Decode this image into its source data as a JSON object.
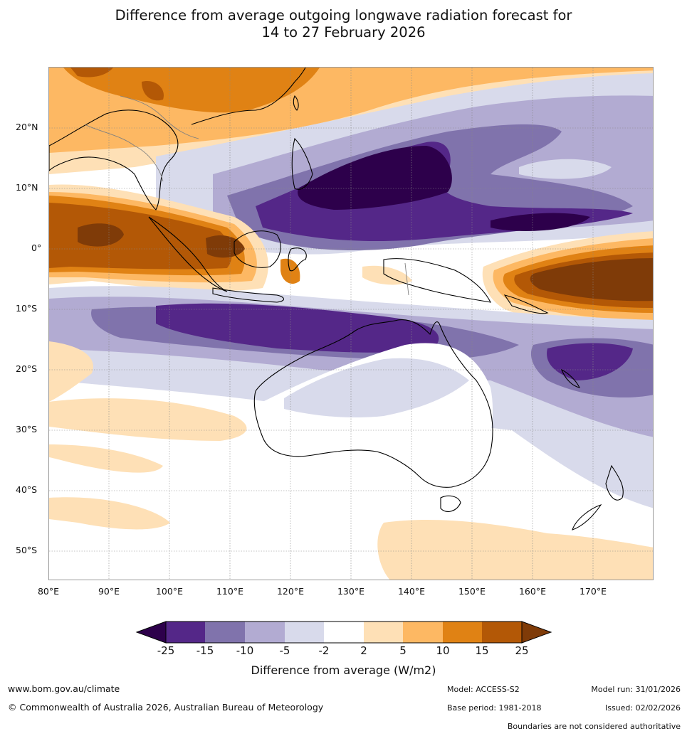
{
  "title": {
    "line1": "Difference from average outgoing longwave radiation forecast for",
    "line2": "14 to 27 February 2026"
  },
  "map": {
    "lat_labels": [
      "20°N",
      "10°N",
      "0°",
      "10°S",
      "20°S",
      "30°S",
      "40°S",
      "50°S"
    ],
    "lon_labels": [
      "80°E",
      "90°E",
      "100°E",
      "110°E",
      "120°E",
      "130°E",
      "140°E",
      "150°E",
      "160°E",
      "170°E"
    ]
  },
  "colorbar": {
    "title": "Difference from average (W/m2)",
    "levels": [
      "-25",
      "-15",
      "-10",
      "-5",
      "-2",
      "2",
      "5",
      "10",
      "15",
      "25"
    ],
    "colors": {
      "below_min": "#2d004b",
      "c1": "#542788",
      "c2": "#8073ac",
      "c3": "#b2abd2",
      "c4": "#d8daeb",
      "c5": "#ffffff",
      "c6": "#fee0b6",
      "c7": "#fdb863",
      "c8": "#e08214",
      "c9": "#b35806",
      "above_max": "#7f3b08"
    }
  },
  "footer": {
    "website": "www.bom.gov.au/climate",
    "copyright": "© Commonwealth of Australia 2026, Australian Bureau of Meteorology",
    "model": "Model: ACCESS-S2",
    "base_period": "Base period: 1981-2018",
    "model_run": "Model run: 31/01/2026",
    "issued": "Issued: 02/02/2026",
    "disclaimer": "Boundaries are not considered authoritative"
  }
}
